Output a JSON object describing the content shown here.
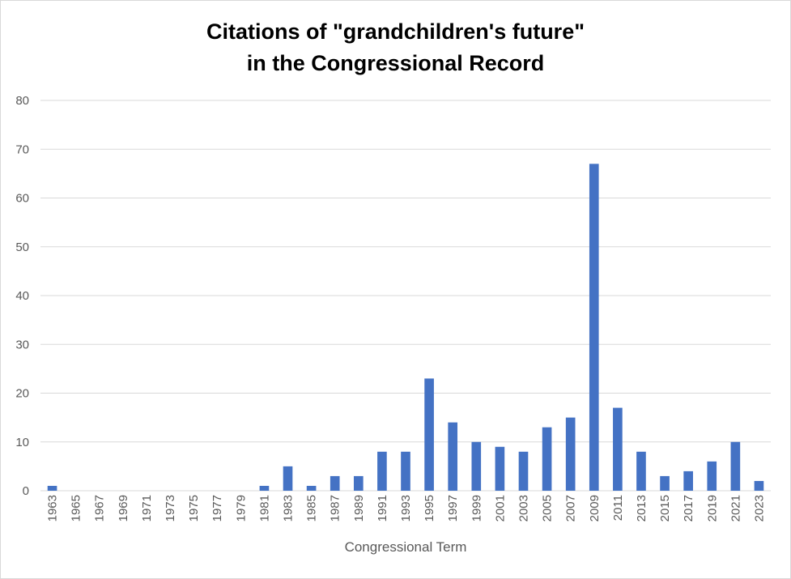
{
  "chart_data": {
    "type": "bar",
    "title_lines": [
      "Citations of \"grandchildren's future\"",
      "in the Congressional Record"
    ],
    "xlabel": "Congressional Term",
    "ylabel": "",
    "ylim": [
      0,
      80
    ],
    "yticks": [
      0,
      10,
      20,
      30,
      40,
      50,
      60,
      70,
      80
    ],
    "grid": true,
    "legend": "none",
    "bar_color": "#4472C4",
    "grid_color": "#d9d9d9",
    "categories": [
      "1963",
      "1965",
      "1967",
      "1969",
      "1971",
      "1973",
      "1975",
      "1977",
      "1979",
      "1981",
      "1983",
      "1985",
      "1987",
      "1989",
      "1991",
      "1993",
      "1995",
      "1997",
      "1999",
      "2001",
      "2003",
      "2005",
      "2007",
      "2009",
      "2011",
      "2013",
      "2015",
      "2017",
      "2019",
      "2021",
      "2023"
    ],
    "values": [
      1,
      0,
      0,
      0,
      0,
      0,
      0,
      0,
      0,
      1,
      5,
      1,
      3,
      3,
      8,
      8,
      23,
      14,
      10,
      9,
      8,
      13,
      15,
      67,
      17,
      8,
      3,
      4,
      6,
      10,
      2
    ]
  }
}
